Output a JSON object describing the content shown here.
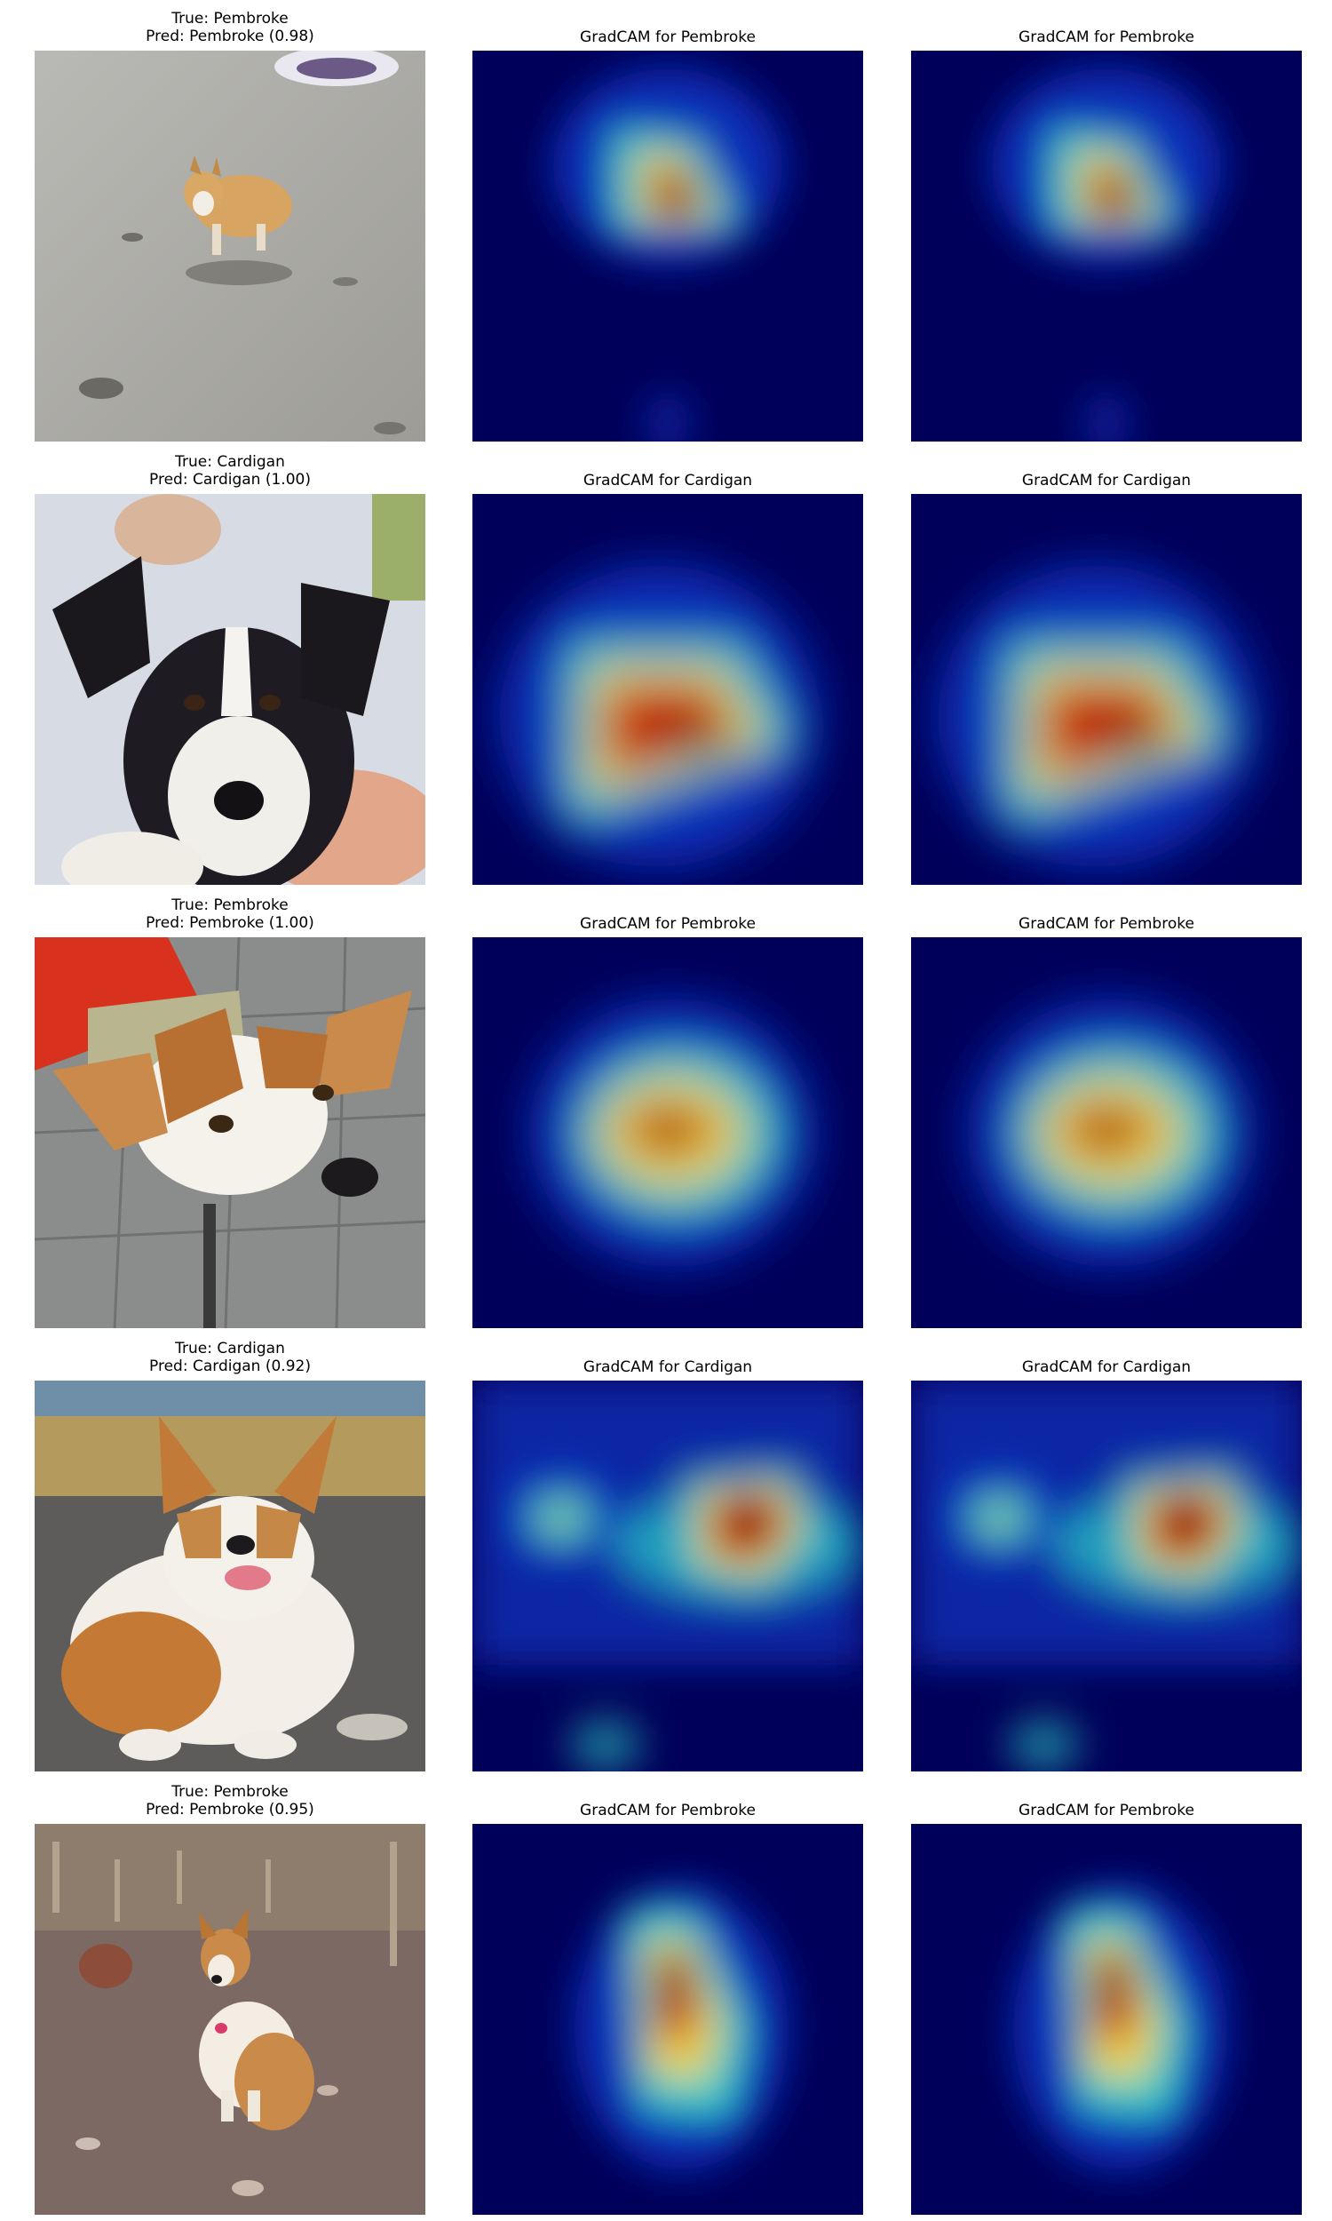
{
  "figure": {
    "rows": [
      {
        "true_label": "True: Pembroke",
        "pred_label": "Pred: Pembroke (0.98)",
        "predicted_class": "Pembroke",
        "confidence": 0.98,
        "cam_title_1": "GradCAM for Pembroke",
        "cam_title_2": "GradCAM for Pembroke",
        "photo": "corgi-on-pavement"
      },
      {
        "true_label": "True: Cardigan",
        "pred_label": "Pred: Cardigan (1.00)",
        "predicted_class": "Cardigan",
        "confidence": 1.0,
        "cam_title_1": "GradCAM for Cardigan",
        "cam_title_2": "GradCAM for Cardigan",
        "photo": "black-white-puppy-held"
      },
      {
        "true_label": "True: Pembroke",
        "pred_label": "Pred: Pembroke (1.00)",
        "predicted_class": "Pembroke",
        "confidence": 1.0,
        "cam_title_1": "GradCAM for Pembroke",
        "cam_title_2": "GradCAM for Pembroke",
        "photo": "corgi-closeup-on-tiles"
      },
      {
        "true_label": "True: Cardigan",
        "pred_label": "Pred: Cardigan (0.92)",
        "predicted_class": "Cardigan",
        "confidence": 0.92,
        "cam_title_1": "GradCAM for Cardigan",
        "cam_title_2": "GradCAM for Cardigan",
        "photo": "smiling-corgi-on-gravel"
      },
      {
        "true_label": "True: Pembroke",
        "pred_label": "Pred: Pembroke (0.95)",
        "predicted_class": "Pembroke",
        "confidence": 0.95,
        "cam_title_1": "GradCAM for Pembroke",
        "cam_title_2": "GradCAM for Pembroke",
        "photo": "sitting-corgi-rocky-field"
      }
    ],
    "colormap": {
      "low": "#00005a",
      "mid_blue": "#0a2fb8",
      "cyan": "#2fd0c8",
      "yellow": "#f2d03a",
      "red": "#c0140e",
      "dark_red": "#5a0000"
    }
  }
}
